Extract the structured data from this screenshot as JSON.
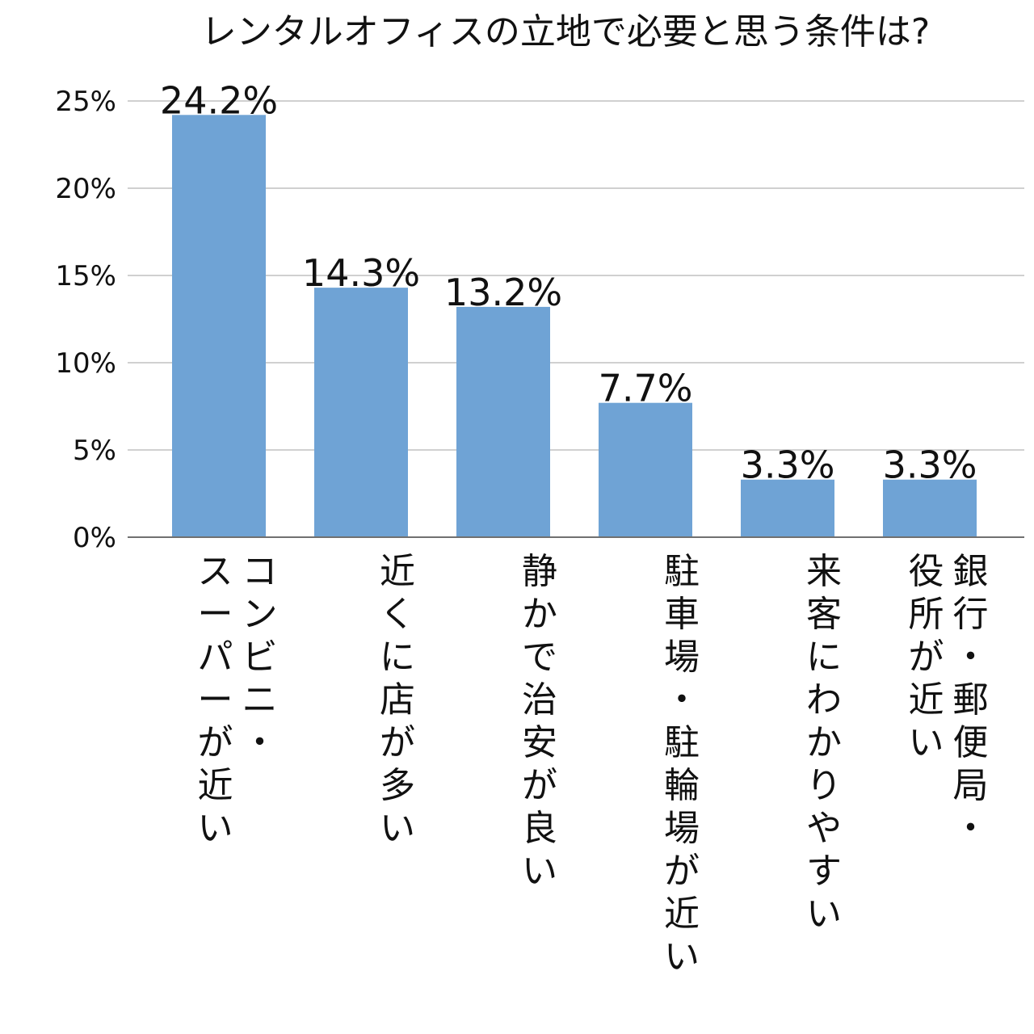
{
  "chart_data": {
    "type": "bar",
    "title": "レンタルオフィスの立地で必要と思う条件は?",
    "xlabel": "",
    "ylabel": "",
    "categories": [
      "コンビニ・スーパーが近い",
      "近くに店が多い",
      "静かで治安が良い",
      "駐車場・駐輪場が近い",
      "来客にわかりやすい",
      "銀行・郵便局・役所が近い"
    ],
    "values": [
      24.2,
      14.3,
      13.2,
      7.7,
      3.3,
      3.3
    ],
    "value_labels": [
      "24.2%",
      "14.3%",
      "13.2%",
      "7.7%",
      "3.3%",
      "3.3%"
    ],
    "category_label_columns": [
      [
        [
          "コンビニ・",
          "スーパーが近い"
        ]
      ],
      [
        [
          "近くに店が多い"
        ]
      ],
      [
        [
          "静かで治安が良い"
        ]
      ],
      [
        [
          "駐車場・駐輪場が近い"
        ]
      ],
      [
        [
          "来客にわかりやすい"
        ]
      ],
      [
        [
          "銀行・郵便局・",
          "役所が近い"
        ]
      ]
    ],
    "yticks": [
      "0%",
      "5%",
      "10%",
      "15%",
      "20%",
      "25%"
    ],
    "ytick_values": [
      0,
      5,
      10,
      15,
      20,
      25
    ],
    "ylim": [
      0,
      25
    ],
    "grid": true,
    "legend": "none",
    "colors": {
      "bar": "#6fa3d5",
      "grid": "#d0d0d0",
      "axis": "#707070",
      "text": "#111111"
    }
  }
}
